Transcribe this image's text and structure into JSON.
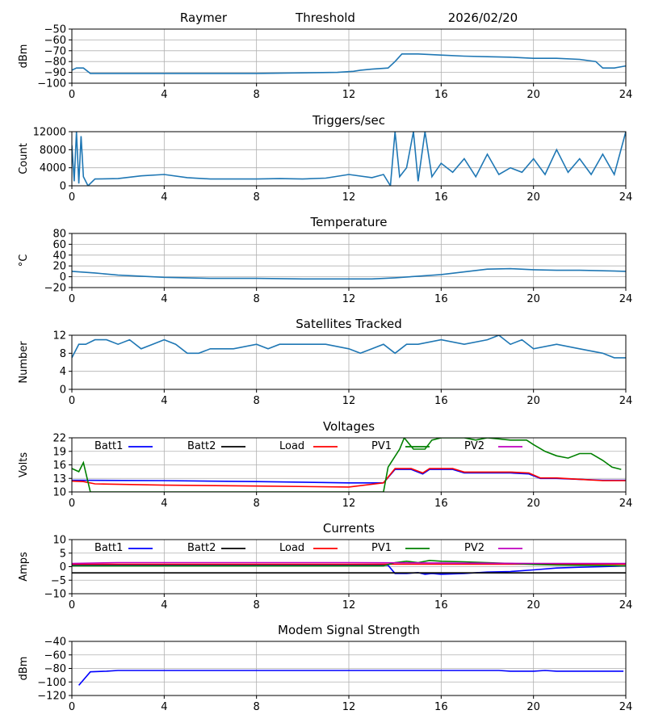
{
  "header": {
    "station": "Raymer",
    "threshold_label": "Threshold",
    "date": "2026/02/20"
  },
  "colors": {
    "series_default": "#1f77b4",
    "grid": "#b0b0b0",
    "batt1": "#0000ff",
    "batt2": "#000000",
    "load": "#ff0000",
    "pv1": "#008000",
    "pv2": "#bf00bf"
  },
  "chart_data": [
    {
      "type": "line",
      "title": "",
      "ylabel": "dBm",
      "xlim": [
        0,
        24
      ],
      "ylim": [
        -100,
        -50
      ],
      "xticks": [
        0,
        4,
        8,
        12,
        16,
        20,
        24
      ],
      "yticks": [
        -100,
        -90,
        -80,
        -70,
        -60,
        -50
      ],
      "series": [
        {
          "name": "threshold",
          "x": [
            0,
            0.2,
            0.5,
            0.8,
            1.5,
            4,
            8,
            11.5,
            12.2,
            12.5,
            13.0,
            13.7,
            14.0,
            14.3,
            15.0,
            16.0,
            17.0,
            18.0,
            19.0,
            20.0,
            21.0,
            22.0,
            22.7,
            23.0,
            23.5,
            24.0
          ],
          "y": [
            -88,
            -86,
            -86,
            -91,
            -91,
            -91,
            -91,
            -90,
            -89,
            -88,
            -87,
            -86,
            -80,
            -73,
            -73,
            -74,
            -75,
            -75.5,
            -76,
            -77,
            -77,
            -78,
            -80,
            -86,
            -86,
            -84
          ],
          "color": "#1f77b4"
        }
      ]
    },
    {
      "type": "line",
      "title": "Triggers/sec",
      "ylabel": "Count",
      "xlim": [
        0,
        24
      ],
      "ylim": [
        0,
        12000
      ],
      "xticks": [
        0,
        4,
        8,
        12,
        16,
        20,
        24
      ],
      "yticks": [
        0,
        4000,
        8000,
        12000
      ],
      "series": [
        {
          "name": "triggers",
          "x": [
            0,
            0.1,
            0.2,
            0.3,
            0.4,
            0.5,
            0.7,
            1.0,
            2.0,
            3.0,
            4.0,
            5.0,
            6.0,
            7.0,
            8.0,
            9.0,
            10.0,
            11.0,
            12.0,
            13.0,
            13.5,
            13.8,
            14.0,
            14.2,
            14.5,
            14.8,
            15.0,
            15.3,
            15.6,
            16.0,
            16.5,
            17.0,
            17.5,
            18.0,
            18.5,
            19.0,
            19.5,
            20.0,
            20.5,
            21.0,
            21.5,
            22.0,
            22.5,
            23.0,
            23.5,
            24.0
          ],
          "y": [
            9000,
            1000,
            12000,
            500,
            11000,
            2000,
            0,
            1500,
            1600,
            2200,
            2500,
            1800,
            1500,
            1500,
            1500,
            1600,
            1500,
            1700,
            2500,
            1800,
            2500,
            0,
            12000,
            2000,
            4000,
            12000,
            1000,
            12000,
            2000,
            5000,
            3000,
            6000,
            2000,
            7000,
            2500,
            4000,
            3000,
            6000,
            2500,
            8000,
            3000,
            6000,
            2500,
            7000,
            2500,
            12000
          ],
          "color": "#1f77b4"
        }
      ]
    },
    {
      "type": "line",
      "title": "Temperature",
      "ylabel": "°C",
      "xlim": [
        0,
        24
      ],
      "ylim": [
        -20,
        80
      ],
      "xticks": [
        0,
        4,
        8,
        12,
        16,
        20,
        24
      ],
      "yticks": [
        -20,
        0,
        20,
        40,
        60,
        80
      ],
      "series": [
        {
          "name": "temperature",
          "x": [
            0,
            1,
            2,
            3,
            4,
            5,
            6,
            8,
            10,
            12,
            13,
            14,
            15,
            16,
            17,
            18,
            19,
            20,
            21,
            22,
            23,
            24
          ],
          "y": [
            10,
            7,
            3,
            1,
            -1,
            -2,
            -3,
            -3,
            -4,
            -4,
            -4,
            -2,
            1,
            4,
            9,
            14,
            15,
            13,
            12,
            12,
            11,
            10
          ],
          "color": "#1f77b4"
        }
      ]
    },
    {
      "type": "line",
      "title": "Satellites Tracked",
      "ylabel": "Number",
      "xlim": [
        0,
        24
      ],
      "ylim": [
        0,
        12
      ],
      "xticks": [
        0,
        4,
        8,
        12,
        16,
        20,
        24
      ],
      "yticks": [
        0,
        4,
        8,
        12
      ],
      "series": [
        {
          "name": "satellites",
          "x": [
            0,
            0.3,
            0.6,
            1,
            1.5,
            2,
            2.5,
            3,
            3.5,
            4,
            4.5,
            5,
            5.5,
            6,
            7,
            8,
            8.5,
            9,
            10,
            11,
            12,
            12.5,
            13,
            13.5,
            14,
            14.5,
            15,
            16,
            17,
            18,
            18.5,
            19,
            19.5,
            20,
            21,
            22,
            23,
            23.5,
            24
          ],
          "y": [
            7,
            10,
            10,
            11,
            11,
            10,
            11,
            9,
            10,
            11,
            10,
            8,
            8,
            9,
            9,
            10,
            9,
            10,
            10,
            10,
            9,
            8,
            9,
            10,
            8,
            10,
            10,
            11,
            10,
            11,
            12,
            10,
            11,
            9,
            10,
            9,
            8,
            7,
            7
          ],
          "color": "#1f77b4"
        }
      ]
    },
    {
      "type": "line",
      "title": "Voltages",
      "ylabel": "Volts",
      "xlim": [
        0,
        24
      ],
      "ylim": [
        10,
        22
      ],
      "xticks": [
        0,
        4,
        8,
        12,
        16,
        20,
        24
      ],
      "yticks": [
        10,
        13,
        16,
        19,
        22
      ],
      "legend": [
        "Batt1",
        "Batt2",
        "Load",
        "PV1",
        "PV2"
      ],
      "series": [
        {
          "name": "Batt1",
          "color": "#0000ff",
          "x": [
            0,
            4,
            8,
            12,
            13.5,
            14,
            14.7,
            15.2,
            15.5,
            16,
            16.5,
            17,
            18,
            19,
            19.8,
            20.3,
            21,
            22,
            23,
            24
          ],
          "y": [
            12.6,
            12.5,
            12.3,
            12.0,
            12.0,
            15.0,
            15.0,
            14.0,
            15.0,
            15.0,
            15.0,
            14.2,
            14.2,
            14.2,
            14.0,
            13.0,
            13.0,
            12.8,
            12.6,
            12.6
          ]
        },
        {
          "name": "Batt2",
          "color": "#000000",
          "x": [],
          "y": []
        },
        {
          "name": "Load",
          "color": "#ff0000",
          "x": [
            0,
            0.5,
            1,
            4,
            8,
            12,
            13.5,
            14,
            14.7,
            15.2,
            15.5,
            16,
            16.5,
            17,
            18,
            19,
            19.8,
            20.3,
            21,
            22,
            23,
            24
          ],
          "y": [
            12.4,
            12.3,
            11.8,
            11.5,
            11.3,
            11.1,
            12.0,
            15.2,
            15.2,
            14.2,
            15.2,
            15.2,
            15.2,
            14.4,
            14.4,
            14.4,
            14.2,
            13.1,
            13.1,
            12.8,
            12.5,
            12.5
          ]
        },
        {
          "name": "PV1",
          "color": "#008000",
          "x": [
            0,
            0.3,
            0.5,
            0.8,
            13.5,
            13.7,
            14.2,
            14.4,
            14.8,
            15.3,
            15.6,
            16.0,
            16.5,
            17.0,
            17.5,
            18.0,
            19.0,
            19.7,
            20.0,
            20.5,
            21.0,
            21.5,
            22.0,
            22.5,
            23.0,
            23.4,
            23.8
          ],
          "y": [
            15.2,
            14.5,
            16.5,
            10.0,
            10.0,
            15.5,
            19.5,
            22.0,
            19.5,
            19.5,
            21.5,
            22.0,
            22.0,
            22.0,
            21.5,
            22.0,
            21.5,
            21.5,
            20.5,
            19.0,
            18.0,
            17.5,
            18.5,
            18.5,
            17.0,
            15.5,
            15.0
          ]
        },
        {
          "name": "PV2",
          "color": "#bf00bf",
          "x": [],
          "y": []
        }
      ]
    },
    {
      "type": "line",
      "title": "Currents",
      "ylabel": "Amps",
      "xlim": [
        0,
        24
      ],
      "ylim": [
        -10,
        10
      ],
      "xticks": [
        0,
        4,
        8,
        12,
        16,
        20,
        24
      ],
      "yticks": [
        -10,
        -5,
        0,
        5,
        10
      ],
      "legend": [
        "Batt1",
        "Batt2",
        "Load",
        "PV1",
        "PV2"
      ],
      "series": [
        {
          "name": "Batt1",
          "color": "#0000ff",
          "x": [
            0,
            4,
            8,
            12,
            13.7,
            14.0,
            14.5,
            15.0,
            15.3,
            15.6,
            16,
            17,
            18,
            19,
            20,
            21,
            22,
            23,
            24
          ],
          "y": [
            0.5,
            0.5,
            0.5,
            0.5,
            0.5,
            -2.5,
            -2.5,
            -2.2,
            -2.8,
            -2.5,
            -2.8,
            -2.5,
            -2.0,
            -1.8,
            -1.2,
            -0.5,
            -0.2,
            0.0,
            0.3
          ]
        },
        {
          "name": "Batt2",
          "color": "#000000",
          "x": [
            0,
            24
          ],
          "y": [
            -2.3,
            -2.3
          ]
        },
        {
          "name": "Load",
          "color": "#ff0000",
          "x": [
            0,
            24
          ],
          "y": [
            0.9,
            0.9
          ]
        },
        {
          "name": "PV1",
          "color": "#008000",
          "x": [
            0,
            13.5,
            14,
            14.5,
            15,
            15.5,
            16,
            17,
            18,
            19,
            20,
            21,
            22,
            24
          ],
          "y": [
            0.3,
            0.3,
            1.5,
            2.0,
            1.5,
            2.3,
            2.0,
            1.8,
            1.5,
            1.2,
            0.8,
            0.6,
            0.5,
            0.3
          ]
        },
        {
          "name": "PV2",
          "color": "#bf00bf",
          "x": [
            0,
            2,
            12,
            20,
            24
          ],
          "y": [
            1.2,
            1.5,
            1.5,
            1.2,
            1.2
          ]
        }
      ]
    },
    {
      "type": "line",
      "title": "Modem Signal Strength",
      "ylabel": "dBm",
      "xlim": [
        0,
        24
      ],
      "ylim": [
        -120,
        -40
      ],
      "xticks": [
        0,
        4,
        8,
        12,
        16,
        20,
        24
      ],
      "yticks": [
        -120,
        -100,
        -80,
        -60,
        -40
      ],
      "series": [
        {
          "name": "modem",
          "x": [
            0.3,
            0.8,
            1.5,
            2,
            4,
            8,
            12,
            16,
            18.5,
            19,
            20,
            20.5,
            21,
            22,
            23,
            23.9
          ],
          "y": [
            -105,
            -85,
            -84,
            -83,
            -83,
            -83,
            -83,
            -83,
            -83,
            -84,
            -84,
            -83,
            -84,
            -84,
            -84,
            -84
          ],
          "color": "#0000ff"
        }
      ]
    }
  ]
}
